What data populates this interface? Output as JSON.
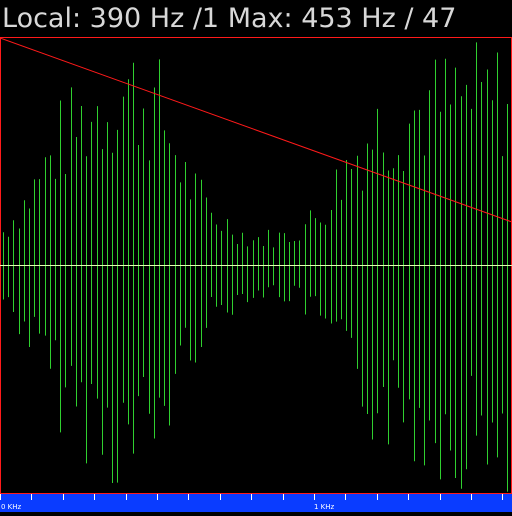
{
  "header": {
    "readout": "Local: 390 Hz /1 Max: 453 Hz / 47"
  },
  "colors": {
    "background": "#000000",
    "signal": "#2fd02f",
    "frame": "#ff1a1a",
    "trend": "#ff1a1a",
    "baseline": "#e0ffb0",
    "axis_bar": "#0a3cff",
    "text": "#d8d8d8"
  },
  "axis": {
    "labels": [
      "0 KHz",
      "1 KHz"
    ]
  }
}
